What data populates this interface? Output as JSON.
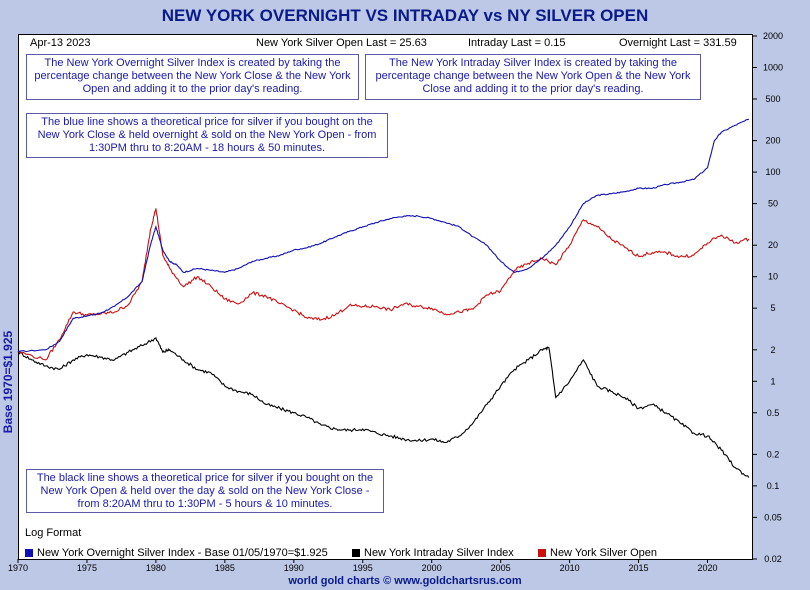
{
  "chart_data": {
    "type": "line",
    "title": "NEW YORK OVERNIGHT VS INTRADAY vs NY SILVER OPEN",
    "ylabel": "Base 1970=$1.925",
    "yscale": "log",
    "ylim": [
      0.02,
      2000
    ],
    "xlim": [
      1970,
      2023.3
    ],
    "y_ticks": [
      "2000",
      "1000",
      "500",
      "200",
      "100",
      "50",
      "20",
      "10",
      "5",
      "2",
      "1",
      "0.5",
      "0.2",
      "0.1",
      "0.05",
      "0.02"
    ],
    "x_ticks": [
      "1970",
      "1975",
      "1980",
      "1985",
      "1990",
      "1995",
      "2000",
      "2005",
      "2010",
      "2015",
      "2020"
    ],
    "grid": false,
    "legend_position": "bottom",
    "series": [
      {
        "name": "New York Overnight Silver Index - Base 01/05/1970=$1.925",
        "color": "#1010b0",
        "x": [
          1970,
          1972,
          1973,
          1974,
          1975,
          1976,
          1977,
          1978,
          1979,
          1979.6,
          1980,
          1980.5,
          1981,
          1981.5,
          1982,
          1983,
          1984,
          1985,
          1986,
          1987,
          1988,
          1989,
          1990,
          1991,
          1992,
          1993,
          1994,
          1995,
          1996,
          1997,
          1998,
          1999,
          2000,
          2001,
          2002,
          2003,
          2004,
          2005,
          2006,
          2007,
          2008,
          2009,
          2010,
          2011,
          2012,
          2013,
          2014,
          2015,
          2016,
          2017,
          2018,
          2019,
          2020,
          2020.5,
          2021,
          2022,
          2023
        ],
        "y": [
          1.925,
          2.0,
          2.4,
          4.0,
          4.2,
          4.5,
          5.2,
          6.5,
          9,
          20,
          30,
          18,
          14,
          13,
          11,
          12,
          11.5,
          11,
          12,
          14,
          15,
          16,
          18,
          19,
          21,
          24,
          27,
          30,
          33,
          36,
          38,
          38,
          36,
          33,
          30,
          24,
          20,
          14,
          11,
          12,
          15,
          20,
          30,
          50,
          60,
          62,
          65,
          70,
          70,
          76,
          80,
          85,
          110,
          200,
          240,
          280,
          320
        ]
      },
      {
        "name": "New York Intraday Silver Index",
        "color": "#000000",
        "x": [
          1970,
          1971,
          1972,
          1973,
          1974,
          1975,
          1976,
          1977,
          1978,
          1979,
          1980,
          1980.5,
          1981,
          1982,
          1983,
          1984,
          1985,
          1986,
          1987,
          1988,
          1989,
          1990,
          1991,
          1992,
          1993,
          1994,
          1995,
          1996,
          1997,
          1998,
          1999,
          2000,
          2001,
          2002,
          2003,
          2004,
          2005,
          2006,
          2007,
          2008,
          2008.5,
          2009,
          2010,
          2011,
          2012,
          2013,
          2014,
          2015,
          2016,
          2017,
          2018,
          2019,
          2020,
          2021,
          2022,
          2023
        ],
        "y": [
          1.925,
          1.6,
          1.4,
          1.3,
          1.6,
          1.8,
          1.7,
          1.6,
          1.9,
          2.2,
          2.6,
          1.9,
          2.0,
          1.6,
          1.3,
          1.2,
          0.9,
          0.8,
          0.75,
          0.6,
          0.55,
          0.5,
          0.45,
          0.38,
          0.35,
          0.34,
          0.35,
          0.32,
          0.3,
          0.28,
          0.27,
          0.28,
          0.26,
          0.3,
          0.4,
          0.6,
          0.9,
          1.3,
          1.6,
          2.0,
          2.1,
          0.7,
          1.0,
          1.6,
          0.9,
          0.8,
          0.7,
          0.55,
          0.6,
          0.5,
          0.4,
          0.32,
          0.3,
          0.22,
          0.15,
          0.12
        ]
      },
      {
        "name": "New York Silver Open",
        "color": "#cc1010",
        "x": [
          1970,
          1972,
          1973,
          1974,
          1975,
          1976,
          1977,
          1978,
          1979,
          1979.6,
          1980,
          1980.5,
          1981,
          1982,
          1983,
          1984,
          1985,
          1986,
          1987,
          1988,
          1989,
          1990,
          1991,
          1992,
          1993,
          1994,
          1995,
          1996,
          1997,
          1998,
          1999,
          2000,
          2001,
          2002,
          2003,
          2004,
          2005,
          2006,
          2007,
          2008,
          2009,
          2010,
          2011,
          2012,
          2013,
          2014,
          2015,
          2016,
          2017,
          2018,
          2019,
          2020,
          2021,
          2022,
          2023
        ],
        "y": [
          1.925,
          1.6,
          2.5,
          4.6,
          4.3,
          4.4,
          4.6,
          5.4,
          9,
          28,
          45,
          16,
          12,
          8,
          10,
          8,
          6.1,
          5.5,
          7,
          6.5,
          5.5,
          4.8,
          4.0,
          3.9,
          4.3,
          5.3,
          5.2,
          5.2,
          4.8,
          5.5,
          5.2,
          5.0,
          4.4,
          4.6,
          4.9,
          6.7,
          7.3,
          11.5,
          13.4,
          15,
          13,
          20,
          35,
          30,
          23,
          19,
          15.7,
          17,
          17,
          15.5,
          16,
          21,
          25,
          21,
          23
        ]
      }
    ]
  },
  "header": {
    "date": "Apr-13  2023",
    "silver_open": "New York Silver Open Last = 25.63",
    "intraday": "Intraday Last = 0.15",
    "overnight": "Overnight Last = 331.59"
  },
  "notes": {
    "overnight_index": "The New York Overnight Silver Index is created by taking the percentage change between the New York Close & the New York Open and adding it to the prior day's reading.",
    "intraday_index": "The New York Intraday Silver Index is created by taking the percentage change between the New York Open & the New York Close and adding it to the prior day's reading.",
    "blue_line": "The blue line shows a theoretical price for silver if you bought on the New York Close & held overnight & sold on the New York Open - from 1:30PM thru to 8:20AM - 18 hours & 50 minutes.",
    "black_line": "The black line shows a theoretical price for silver if you bought on the New York Open & held over the day & sold on the New York Close - from 8:20AM thru to 1:30PM - 5 hours & 10 minutes."
  },
  "log_format": "Log Format",
  "footer": "world gold charts © www.goldchartsrus.com",
  "colors": {
    "background": "#bcc8e6",
    "title": "#0a1a8a",
    "note_text": "#1a1aa8"
  }
}
